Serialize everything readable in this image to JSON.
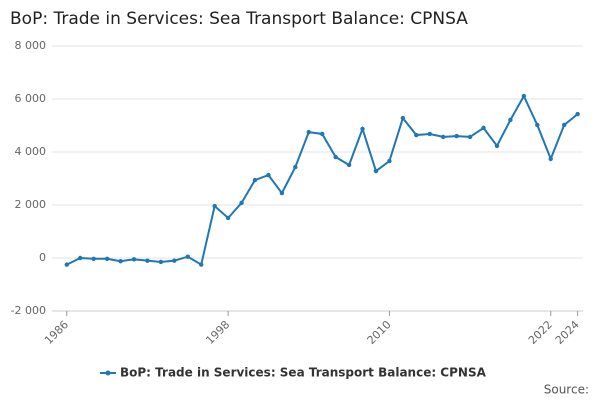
{
  "chart_data": {
    "type": "line",
    "title": "BoP: Trade in Services: Sea Transport Balance: CPNSA",
    "source": "Source:",
    "x": [
      1986,
      1987,
      1988,
      1989,
      1990,
      1991,
      1992,
      1993,
      1994,
      1995,
      1996,
      1997,
      1998,
      1999,
      2000,
      2001,
      2002,
      2003,
      2004,
      2005,
      2006,
      2007,
      2008,
      2009,
      2010,
      2011,
      2012,
      2013,
      2014,
      2015,
      2016,
      2017,
      2018,
      2019,
      2020,
      2021,
      2022,
      2023,
      2024
    ],
    "series": [
      {
        "name": "BoP: Trade in Services: Sea Transport Balance: CPNSA",
        "color": "#1f77b4",
        "values": [
          -250,
          0,
          -30,
          -30,
          -120,
          -50,
          -100,
          -150,
          -100,
          50,
          -250,
          1960,
          1510,
          2080,
          2940,
          3130,
          2450,
          3430,
          4750,
          4680,
          3810,
          3510,
          4870,
          3280,
          3660,
          5280,
          4640,
          4680,
          4570,
          4600,
          4570,
          4910,
          4230,
          5210,
          6110,
          5020,
          3740,
          5020,
          5430
        ]
      }
    ],
    "xlim": [
      1984.9,
      2024.4
    ],
    "xticks": [
      1986,
      1998,
      2010,
      2022,
      2024
    ],
    "ylim": [
      -2000,
      8000
    ],
    "yticks": [
      {
        "value": -2000,
        "label": "-2 000"
      },
      0,
      {
        "value": 2000,
        "label": "2 000"
      },
      {
        "value": 4000,
        "label": "4 000"
      },
      {
        "value": 6000,
        "label": "6 000"
      },
      {
        "value": 8000,
        "label": "8 000"
      }
    ],
    "grid": true
  }
}
